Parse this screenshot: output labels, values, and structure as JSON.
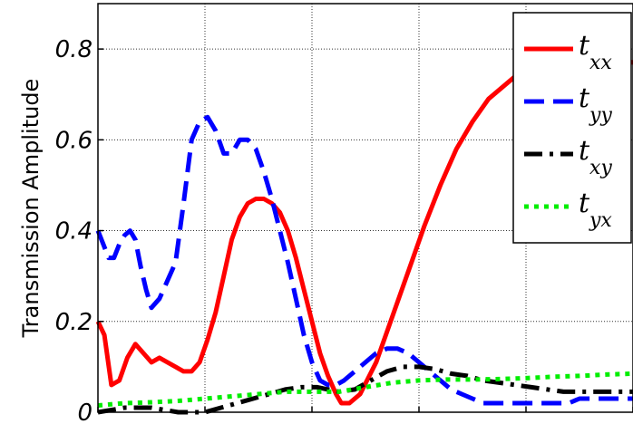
{
  "chart_data": {
    "type": "line",
    "title": "",
    "xlabel": "",
    "ylabel": "Transmission Amplitude",
    "xlim": [
      0,
      10
    ],
    "ylim": [
      0,
      0.9
    ],
    "yticks": [
      0,
      0.2,
      0.4,
      0.6,
      0.8
    ],
    "ytick_labels": [
      "0",
      "0.2",
      "0.4",
      "0.6",
      "0.8"
    ],
    "xticks": [
      0,
      2,
      4,
      6,
      8,
      10
    ],
    "grid": true,
    "legend_placement": "top-right",
    "series": [
      {
        "name": "t_xx",
        "label_main": "t",
        "label_sub": "xx",
        "color": "#ff0000",
        "dash": "solid",
        "x": [
          0,
          0.12,
          0.25,
          0.4,
          0.55,
          0.7,
          0.85,
          1.0,
          1.15,
          1.3,
          1.45,
          1.6,
          1.75,
          1.9,
          2.05,
          2.2,
          2.35,
          2.5,
          2.65,
          2.8,
          2.95,
          3.1,
          3.25,
          3.4,
          3.55,
          3.7,
          3.85,
          4.0,
          4.15,
          4.3,
          4.45,
          4.55,
          4.7,
          4.9,
          5.2,
          5.5,
          5.8,
          6.1,
          6.4,
          6.7,
          7.0,
          7.3,
          7.6,
          7.9,
          8.2,
          8.5,
          8.8,
          9.1,
          9.4,
          9.7,
          10.0
        ],
        "values": [
          0.2,
          0.17,
          0.06,
          0.07,
          0.12,
          0.15,
          0.13,
          0.11,
          0.12,
          0.11,
          0.1,
          0.09,
          0.09,
          0.11,
          0.16,
          0.22,
          0.3,
          0.38,
          0.43,
          0.46,
          0.47,
          0.47,
          0.46,
          0.44,
          0.4,
          0.34,
          0.27,
          0.2,
          0.13,
          0.08,
          0.04,
          0.02,
          0.02,
          0.04,
          0.11,
          0.21,
          0.31,
          0.41,
          0.5,
          0.58,
          0.64,
          0.69,
          0.72,
          0.75,
          0.77,
          0.78,
          0.79,
          0.8,
          0.79,
          0.78,
          0.77
        ]
      },
      {
        "name": "t_yy",
        "label_main": "t",
        "label_sub": "yy",
        "color": "#0000ff",
        "dash": "dashed",
        "x": [
          0,
          0.1,
          0.2,
          0.3,
          0.4,
          0.5,
          0.6,
          0.7,
          0.8,
          0.9,
          1.0,
          1.15,
          1.3,
          1.45,
          1.6,
          1.75,
          1.9,
          2.05,
          2.2,
          2.35,
          2.5,
          2.65,
          2.8,
          2.95,
          3.1,
          3.25,
          3.4,
          3.55,
          3.7,
          3.85,
          4.0,
          4.15,
          4.3,
          4.45,
          4.6,
          4.8,
          5.0,
          5.2,
          5.4,
          5.6,
          5.8,
          6.0,
          6.2,
          6.4,
          6.6,
          6.8,
          7.0,
          7.2,
          7.4,
          7.6,
          7.8,
          8.0,
          8.2,
          8.4,
          8.6,
          8.8,
          9.0,
          9.2,
          9.4,
          9.6,
          9.8,
          10.0
        ],
        "values": [
          0.4,
          0.37,
          0.34,
          0.34,
          0.37,
          0.39,
          0.4,
          0.38,
          0.32,
          0.27,
          0.23,
          0.25,
          0.29,
          0.33,
          0.46,
          0.6,
          0.64,
          0.65,
          0.62,
          0.57,
          0.57,
          0.6,
          0.6,
          0.58,
          0.53,
          0.47,
          0.4,
          0.33,
          0.25,
          0.17,
          0.11,
          0.07,
          0.06,
          0.06,
          0.07,
          0.09,
          0.11,
          0.13,
          0.14,
          0.14,
          0.13,
          0.11,
          0.09,
          0.07,
          0.05,
          0.04,
          0.03,
          0.02,
          0.02,
          0.02,
          0.02,
          0.02,
          0.02,
          0.02,
          0.02,
          0.02,
          0.03,
          0.03,
          0.03,
          0.03,
          0.03,
          0.03
        ]
      },
      {
        "name": "t_xy",
        "label_main": "t",
        "label_sub": "xy",
        "color": "#000000",
        "dash": "dashdot",
        "x": [
          0,
          0.5,
          1.0,
          1.5,
          2.0,
          2.3,
          2.6,
          2.9,
          3.2,
          3.5,
          3.8,
          4.1,
          4.3,
          4.5,
          4.8,
          5.1,
          5.4,
          5.7,
          6.0,
          6.3,
          6.6,
          6.9,
          7.2,
          7.5,
          7.8,
          8.1,
          8.4,
          8.7,
          9.0,
          9.3,
          9.6,
          10.0
        ],
        "values": [
          0.0,
          0.01,
          0.01,
          0.0,
          0.0,
          0.01,
          0.02,
          0.03,
          0.04,
          0.05,
          0.055,
          0.055,
          0.05,
          0.045,
          0.05,
          0.07,
          0.09,
          0.1,
          0.1,
          0.095,
          0.085,
          0.08,
          0.07,
          0.065,
          0.06,
          0.055,
          0.05,
          0.045,
          0.045,
          0.045,
          0.045,
          0.045
        ]
      },
      {
        "name": "t_yx",
        "label_main": "t",
        "label_sub": "yx",
        "color": "#00ee00",
        "dash": "dotted",
        "x": [
          0,
          0.5,
          1.0,
          1.5,
          2.0,
          2.5,
          3.0,
          3.5,
          4.0,
          4.5,
          5.0,
          5.5,
          6.0,
          6.5,
          7.0,
          7.5,
          8.0,
          8.5,
          9.0,
          9.5,
          10.0
        ],
        "values": [
          0.015,
          0.02,
          0.022,
          0.025,
          0.03,
          0.035,
          0.04,
          0.045,
          0.045,
          0.045,
          0.055,
          0.065,
          0.07,
          0.072,
          0.072,
          0.073,
          0.075,
          0.078,
          0.08,
          0.083,
          0.085
        ]
      }
    ]
  }
}
